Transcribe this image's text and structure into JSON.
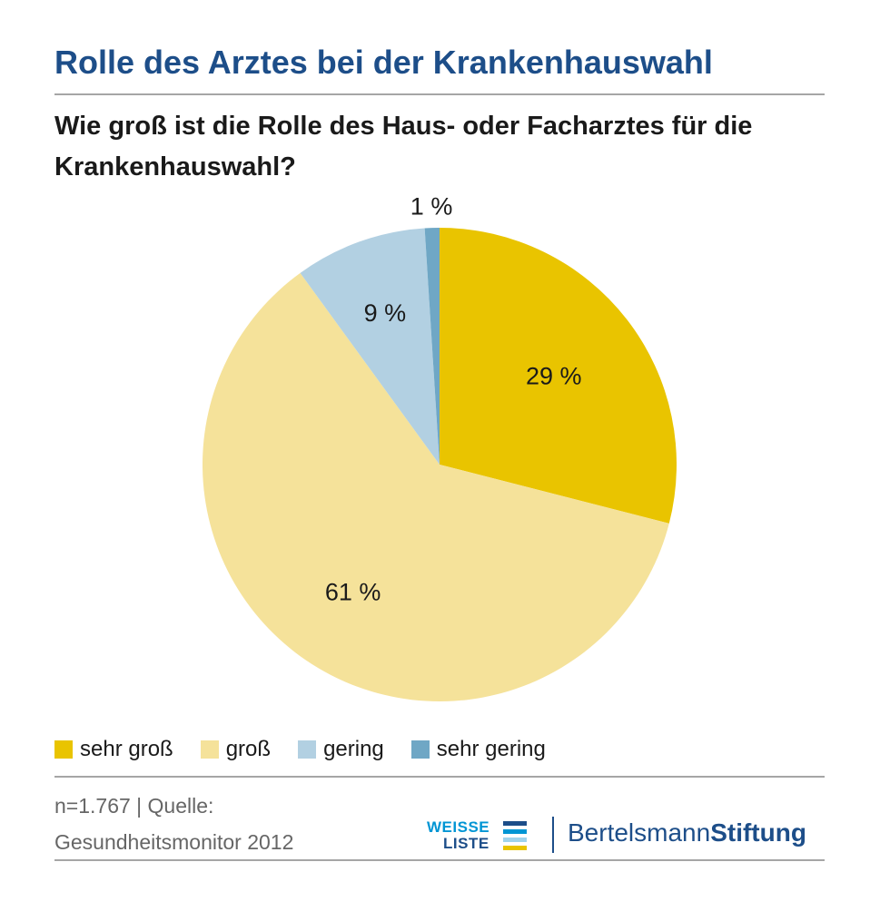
{
  "header": {
    "title": "Rolle des Arztes bei der Krankenhauswahl",
    "subtitle": "Wie groß ist die Rolle des Haus- oder Facharztes für die Krankenhauswahl?"
  },
  "chart_data": {
    "type": "pie",
    "title": "Rolle des Arztes bei der Krankenhauswahl",
    "subtitle": "Wie groß ist die Rolle des Haus- oder Facharztes für die Krankenhauswahl?",
    "categories": [
      "sehr groß",
      "groß",
      "gering",
      "sehr gering"
    ],
    "values": [
      29,
      61,
      9,
      1
    ],
    "labels": [
      "29 %",
      "61 %",
      "9 %",
      "1 %"
    ],
    "colors": [
      "#e9c400",
      "#f5e29a",
      "#b2d0e2",
      "#6fa7c5"
    ],
    "start_angle": "12 o'clock, clockwise",
    "legend_position": "bottom-left"
  },
  "legend": {
    "items": [
      {
        "label": "sehr groß",
        "color": "#e9c400"
      },
      {
        "label": "groß",
        "color": "#f5e29a"
      },
      {
        "label": "gering",
        "color": "#b2d0e2"
      },
      {
        "label": "sehr gering",
        "color": "#6fa7c5"
      }
    ]
  },
  "footer": {
    "source_line1": "n=1.767 | Quelle:",
    "source_line2": "Gesundheitsmonitor 2012",
    "logo_wl_line1": "WEISSE",
    "logo_wl_line2": "LISTE",
    "logo_bs_regular": "Bertelsmann",
    "logo_bs_bold": "Stiftung"
  },
  "colors": {
    "title": "#1d4e89",
    "rule": "#a6a6a6",
    "source_text": "#666666"
  }
}
